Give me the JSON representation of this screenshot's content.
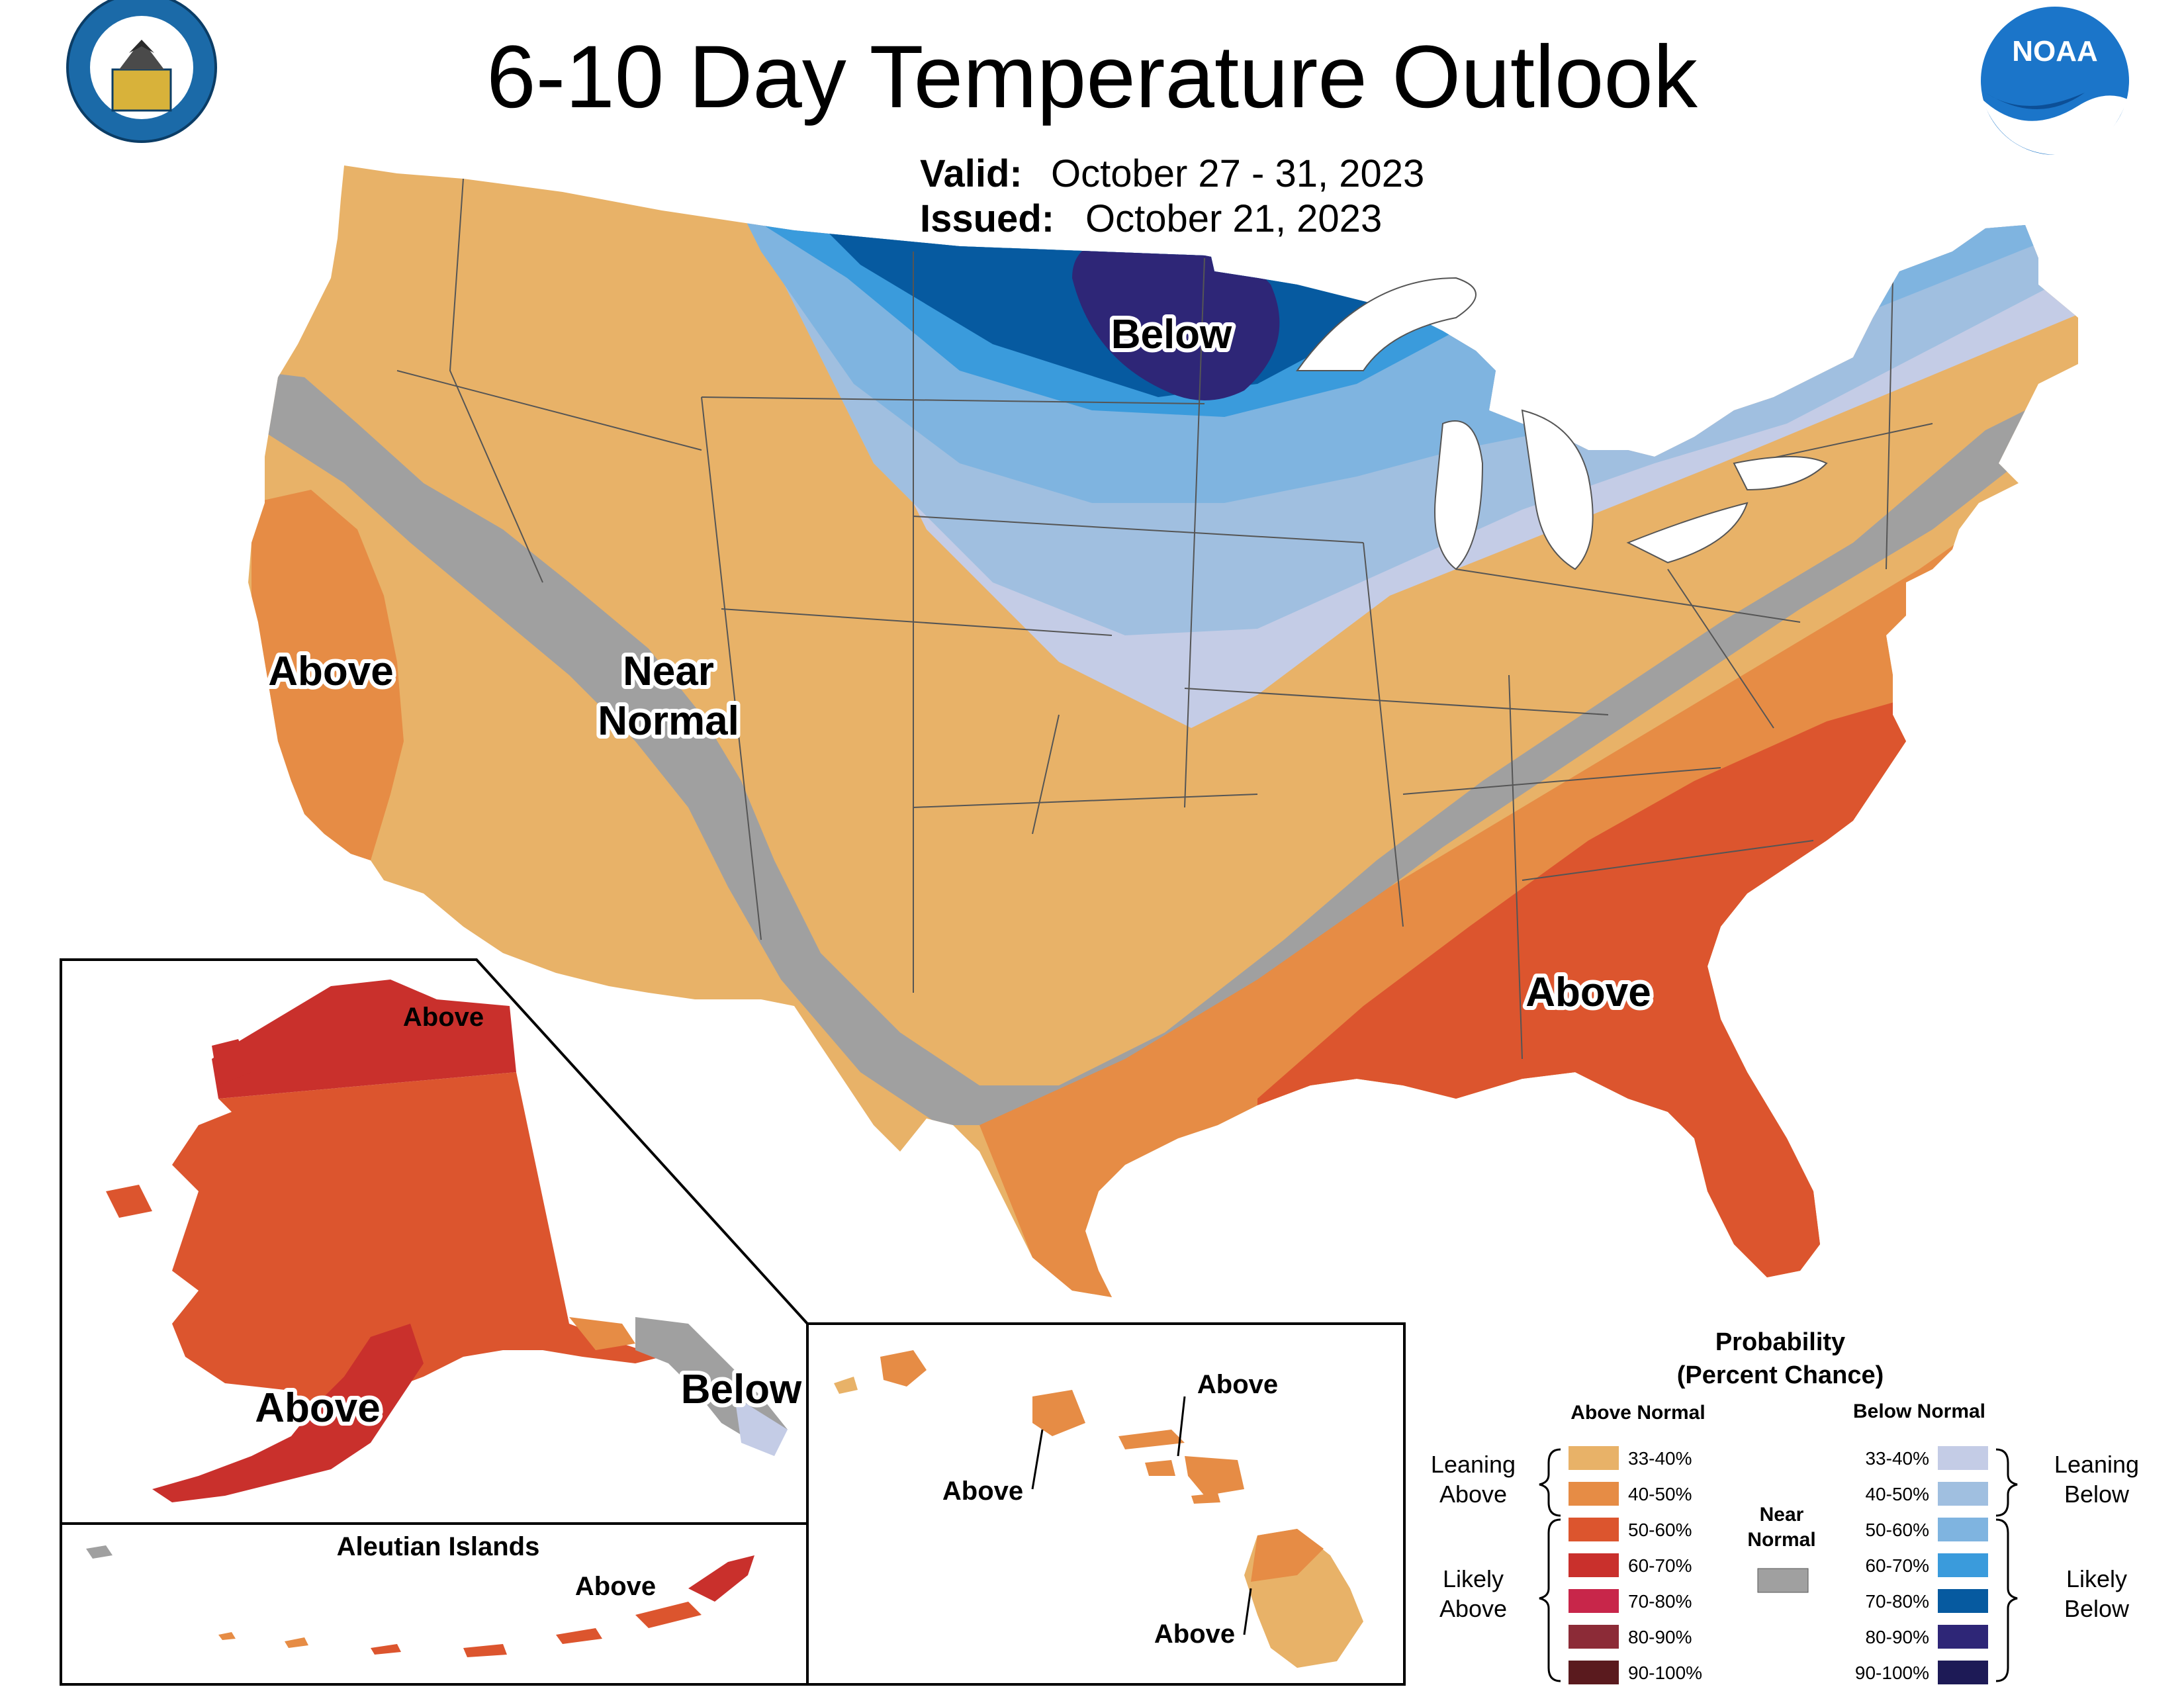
{
  "header": {
    "title": "6-10 Day Temperature Outlook",
    "valid_label": "Valid:",
    "valid_value": "October 27 - 31, 2023",
    "issued_label": "Issued:",
    "issued_value": "October 21, 2023"
  },
  "logos": {
    "commerce_seal": "department-of-commerce-seal",
    "noaa_logo": "noaa-logo",
    "noaa_text": "NOAA"
  },
  "conus": {
    "labels": {
      "below_north": "Below",
      "above_west": "Above",
      "near_normal_line1": "Near",
      "near_normal_line2": "Normal",
      "above_southeast": "Above"
    }
  },
  "alaska": {
    "labels": {
      "above_north": "Above",
      "above_southwest": "Above",
      "below_panhandle": "Below"
    }
  },
  "aleutians": {
    "title": "Aleutian Islands",
    "label_above": "Above"
  },
  "hawaii": {
    "labels": {
      "above_kauai": "Above",
      "above_oahu": "Above",
      "above_big_island": "Above"
    }
  },
  "legend": {
    "title_line1": "Probability",
    "title_line2": "(Percent Chance)",
    "above_header": "Above Normal",
    "below_header": "Below Normal",
    "near_normal_line1": "Near",
    "near_normal_line2": "Normal",
    "near_normal_color": "#a0a0a0",
    "leaning_above_line1": "Leaning",
    "leaning_above_line2": "Above",
    "likely_above_line1": "Likely",
    "likely_above_line2": "Above",
    "leaning_below_line1": "Leaning",
    "leaning_below_line2": "Below",
    "likely_below_line1": "Likely",
    "likely_below_line2": "Below",
    "above": [
      {
        "range": "33-40%",
        "color": "#e8b268"
      },
      {
        "range": "40-50%",
        "color": "#e68c45"
      },
      {
        "range": "50-60%",
        "color": "#dc552e"
      },
      {
        "range": "60-70%",
        "color": "#c9302c"
      },
      {
        "range": "70-80%",
        "color": "#c8264a"
      },
      {
        "range": "80-90%",
        "color": "#8c2b37"
      },
      {
        "range": "90-100%",
        "color": "#5a1a1e"
      }
    ],
    "below": [
      {
        "range": "33-40%",
        "color": "#c4cce6"
      },
      {
        "range": "40-50%",
        "color": "#a0bfe0"
      },
      {
        "range": "50-60%",
        "color": "#7fb4e0"
      },
      {
        "range": "60-70%",
        "color": "#3a9bdc"
      },
      {
        "range": "70-80%",
        "color": "#065aa0"
      },
      {
        "range": "80-90%",
        "color": "#2e2677"
      },
      {
        "range": "90-100%",
        "color": "#1d1a56"
      }
    ]
  }
}
